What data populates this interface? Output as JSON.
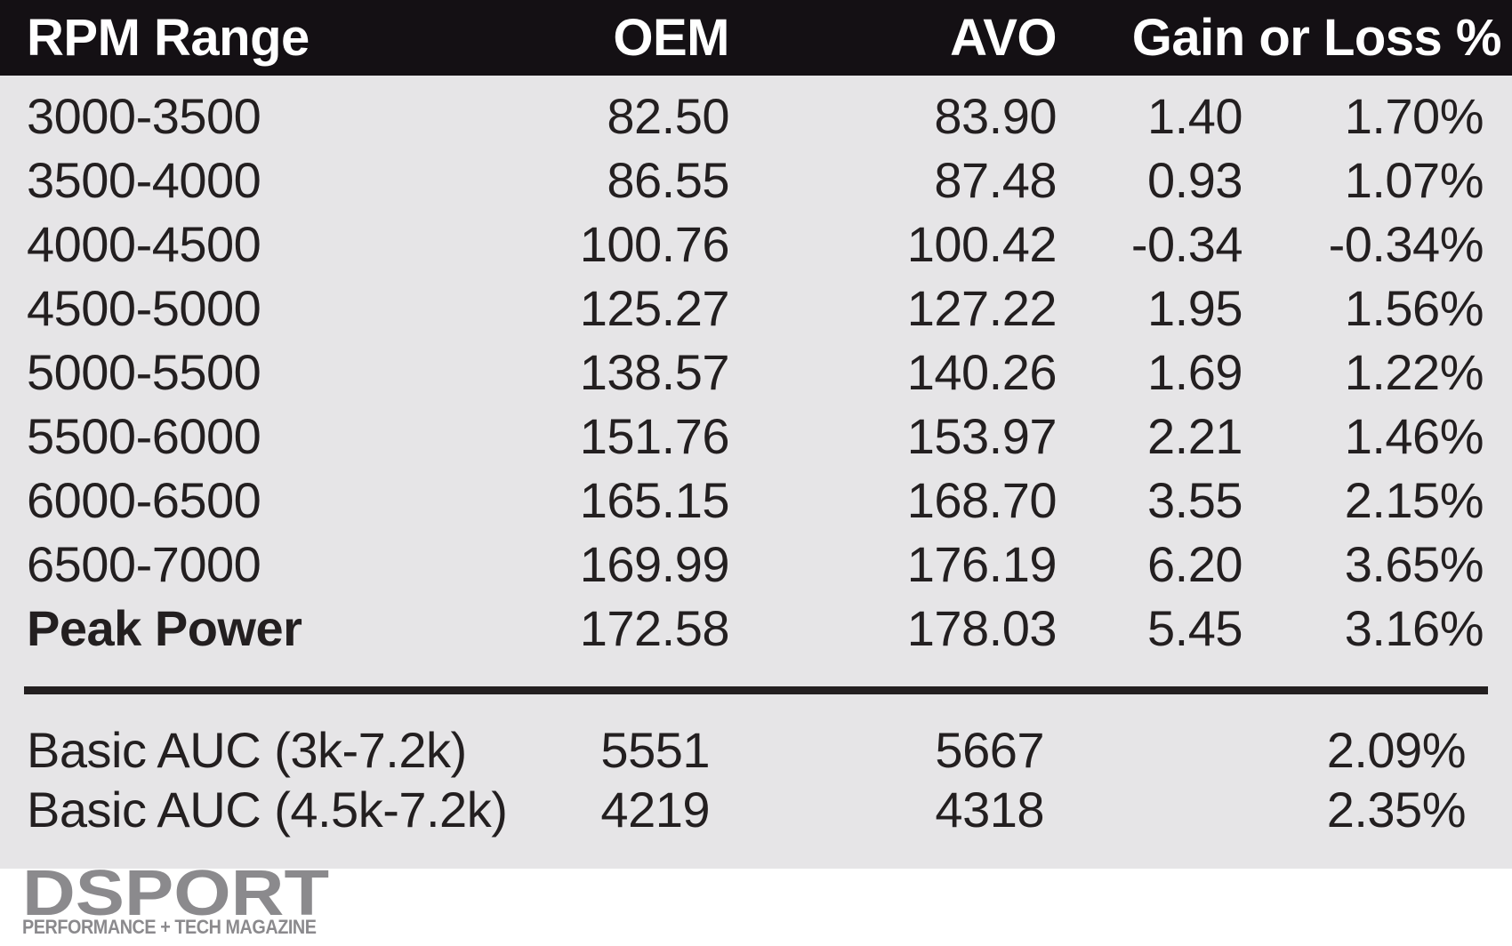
{
  "colors": {
    "header_bg": "#141014",
    "header_text": "#ffffff",
    "body_bg": "#e6e5e7",
    "text": "#231f20",
    "logo_gray": "#8b8a8d",
    "footer_bg": "#ffffff"
  },
  "header": {
    "col_rpm": "RPM Range",
    "col_oem": "OEM",
    "col_avo": "AVO",
    "col_gain": "Gain or Loss %"
  },
  "rows": [
    {
      "range": "3000-3500",
      "oem": "82.50",
      "avo": "83.90",
      "gain": "1.40",
      "pct": "1.70%"
    },
    {
      "range": "3500-4000",
      "oem": "86.55",
      "avo": "87.48",
      "gain": "0.93",
      "pct": "1.07%"
    },
    {
      "range": "4000-4500",
      "oem": "100.76",
      "avo": "100.42",
      "gain": "-0.34",
      "pct": "-0.34%"
    },
    {
      "range": "4500-5000",
      "oem": "125.27",
      "avo": "127.22",
      "gain": "1.95",
      "pct": "1.56%"
    },
    {
      "range": "5000-5500",
      "oem": "138.57",
      "avo": "140.26",
      "gain": "1.69",
      "pct": "1.22%"
    },
    {
      "range": "5500-6000",
      "oem": "151.76",
      "avo": "153.97",
      "gain": "2.21",
      "pct": "1.46%"
    },
    {
      "range": "6000-6500",
      "oem": "165.15",
      "avo": "168.70",
      "gain": "3.55",
      "pct": "2.15%"
    },
    {
      "range": "6500-7000",
      "oem": "169.99",
      "avo": "176.19",
      "gain": "6.20",
      "pct": "3.65%"
    },
    {
      "range": "Peak Power",
      "oem": "172.58",
      "avo": "178.03",
      "gain": "5.45",
      "pct": "3.16%",
      "bold": true
    }
  ],
  "summary_rows": [
    {
      "label": "Basic AUC (3k-7.2k)",
      "oem": "5551",
      "avo": "5667",
      "gain": "",
      "pct": "2.09%"
    },
    {
      "label": "Basic AUC (4.5k-7.2k)",
      "oem": "4219",
      "avo": "4318",
      "gain": "",
      "pct": "2.35%"
    }
  ],
  "logo": {
    "name": "DSPORT",
    "tagline": "PERFORMANCE + TECH MAGAZINE"
  },
  "chart_data": {
    "type": "table",
    "title": "OEM vs AVO power comparison by RPM range",
    "columns": [
      "RPM Range",
      "OEM",
      "AVO",
      "Gain",
      "Gain or Loss %"
    ],
    "rows": [
      [
        "3000-3500",
        82.5,
        83.9,
        1.4,
        "1.70%"
      ],
      [
        "3500-4000",
        86.55,
        87.48,
        0.93,
        "1.07%"
      ],
      [
        "4000-4500",
        100.76,
        100.42,
        -0.34,
        "-0.34%"
      ],
      [
        "4500-5000",
        125.27,
        127.22,
        1.95,
        "1.56%"
      ],
      [
        "5000-5500",
        138.57,
        140.26,
        1.69,
        "1.22%"
      ],
      [
        "5500-6000",
        151.76,
        153.97,
        2.21,
        "1.46%"
      ],
      [
        "6000-6500",
        165.15,
        168.7,
        3.55,
        "2.15%"
      ],
      [
        "6500-7000",
        169.99,
        176.19,
        6.2,
        "3.65%"
      ],
      [
        "Peak Power",
        172.58,
        178.03,
        5.45,
        "3.16%"
      ],
      [
        "Basic AUC (3k-7.2k)",
        5551,
        5667,
        null,
        "2.09%"
      ],
      [
        "Basic AUC (4.5k-7.2k)",
        4219,
        4318,
        null,
        "2.35%"
      ]
    ]
  }
}
